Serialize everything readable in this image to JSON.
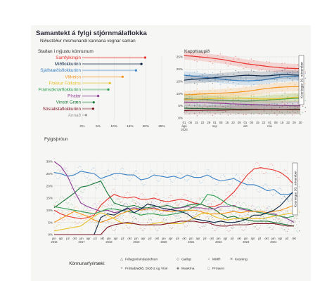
{
  "header": {
    "title": "Samantekt á fylgi stjórnmálaflokka",
    "subtitle": "Niðustöður mismunandi kannana vegnar saman"
  },
  "chart_data": [
    {
      "type": "scatter",
      "title": "Staðan í nýjustu könnunum",
      "xlabel": "",
      "ylabel": "",
      "xlim": [
        0,
        25
      ],
      "x_ticks": [
        "0%",
        "5%",
        "10%",
        "15%",
        "20%",
        "25%"
      ],
      "grid": true,
      "categories": [
        "Samfylkingin",
        "Miðflokkurinn",
        "Sjálfstæðisflokkurinn",
        "Viðreisn",
        "Flokkur Fólksins",
        "Framsóknarflokkurinn",
        "Píratar",
        "Vinstri Græn",
        "Sósíalistaflokkurinn",
        "Annað"
      ],
      "values": [
        19.8,
        18.6,
        16.9,
        12.7,
        8.7,
        8.2,
        5.0,
        3.6,
        3.4,
        1.2
      ],
      "colors": [
        "#e8302c",
        "#0b2646",
        "#3b82c4",
        "#f6941d",
        "#e8c22a",
        "#2e9e4f",
        "#8e3b95",
        "#1a7a3a",
        "#7a1020",
        "#9a9a9a"
      ]
    },
    {
      "type": "line",
      "title": "Kapphlaupið",
      "xlabel": "",
      "ylabel": "",
      "ylim": [
        0,
        25
      ],
      "y_ticks": [
        "0%",
        "5%",
        "10%",
        "15%",
        "20%",
        "25%"
      ],
      "x_ticks": [
        "01 ágú 2024",
        "08",
        "15",
        "22",
        "29",
        "01 sep",
        "08",
        "15",
        "22",
        "29",
        "01 okt",
        "08",
        "15",
        "22",
        "01 nóv",
        "08",
        "15",
        "22",
        "29",
        "30"
      ],
      "annotation": "Kosningar 30. nóvember",
      "grid": true,
      "series": [
        {
          "name": "Samfylkingin",
          "color": "#e8302c",
          "values": [
            25.5,
            25.3,
            25.0,
            24.7,
            24.3,
            23.9,
            23.3,
            22.8,
            22.2,
            21.8,
            21.4,
            21.0,
            20.7,
            20.4,
            20.3,
            20.2
          ]
        },
        {
          "name": "Sjálfstæðisflokkurinn",
          "color": "#3b82c4",
          "values": [
            17.5,
            17.2,
            16.8,
            16.5,
            16.2,
            15.8,
            15.5,
            15.3,
            15.2,
            15.3,
            15.5,
            16.0,
            16.5,
            16.9,
            17.0,
            17.0
          ]
        },
        {
          "name": "Miðflokkurinn",
          "color": "#0b2646",
          "values": [
            15.5,
            15.8,
            16.0,
            16.2,
            16.5,
            16.8,
            17.0,
            17.3,
            17.5,
            17.4,
            17.2,
            17.3,
            17.6,
            17.8,
            17.6,
            17.5
          ]
        },
        {
          "name": "Viðreisn",
          "color": "#f6941d",
          "values": [
            9.5,
            9.6,
            9.8,
            9.9,
            10.0,
            10.2,
            10.4,
            10.6,
            10.9,
            11.3,
            11.8,
            12.2,
            12.5,
            12.7,
            12.8,
            12.8
          ]
        },
        {
          "name": "Framsóknarflokkurinn",
          "color": "#2e9e4f",
          "values": [
            7.8,
            7.7,
            7.6,
            7.5,
            7.3,
            7.1,
            7.0,
            7.0,
            6.9,
            7.0,
            7.2,
            7.4,
            7.6,
            7.8,
            8.0,
            8.1
          ]
        },
        {
          "name": "Flokkur Fólksins",
          "color": "#e8c22a",
          "values": [
            7.5,
            7.6,
            7.8,
            7.9,
            8.0,
            8.0,
            8.1,
            8.1,
            8.0,
            7.9,
            7.8,
            7.8,
            7.9,
            8.1,
            8.4,
            8.6
          ]
        },
        {
          "name": "Píratar",
          "color": "#8e3b95",
          "values": [
            6.5,
            6.4,
            6.3,
            6.2,
            6.1,
            6.0,
            5.8,
            5.7,
            5.6,
            5.5,
            5.4,
            5.3,
            5.2,
            5.1,
            5.0,
            5.0
          ]
        },
        {
          "name": "Vinstri Græn",
          "color": "#1a7a3a",
          "values": [
            4.0,
            3.9,
            3.9,
            3.8,
            3.8,
            3.7,
            3.7,
            3.6,
            3.6,
            3.6,
            3.5,
            3.5,
            3.5,
            3.5,
            3.6,
            3.6
          ]
        },
        {
          "name": "Sósíalistaflokkurinn",
          "color": "#7a1020",
          "values": [
            3.0,
            3.1,
            3.1,
            3.2,
            3.2,
            3.2,
            3.3,
            3.3,
            3.3,
            3.4,
            3.4,
            3.4,
            3.4,
            3.4,
            3.4,
            3.4
          ]
        }
      ]
    },
    {
      "type": "line",
      "title": "Fylgisþróun",
      "xlabel": "",
      "ylabel": "",
      "ylim": [
        0,
        30
      ],
      "y_ticks": [
        "0%",
        "5%",
        "10%",
        "15%",
        "20%",
        "25%",
        "30%"
      ],
      "x_ticks": [
        "jan 2016",
        "apr",
        "júl",
        "okt",
        "jan 2017",
        "apr",
        "júl",
        "okt",
        "jan 2018",
        "apr",
        "júl",
        "okt",
        "jan 2019",
        "apr",
        "júl",
        "okt",
        "jan 2020",
        "apr",
        "júl",
        "okt",
        "jan 2021",
        "apr",
        "júl",
        "okt",
        "jan 2022",
        "apr",
        "júl",
        "okt",
        "jan 2023",
        "apr",
        "júl",
        "okt",
        "jan 2024",
        "apr",
        "júl",
        "okt"
      ],
      "annotation": "Kosningar 30. nóvember",
      "grid": true,
      "series": [
        {
          "name": "Sjálfstæðisflokkurinn",
          "color": "#3b82c4",
          "values": [
            25.5,
            25.0,
            24.0,
            24.5,
            26.0,
            25.5,
            25.0,
            23.0,
            24.0,
            25.0,
            25.0,
            24.5,
            24.5,
            22.5,
            23.0,
            24.5,
            24.0,
            23.5,
            24.0,
            23.0,
            24.5,
            23.5,
            23.5,
            24.5,
            23.0,
            22.0,
            22.5,
            23.0,
            21.5,
            20.5,
            20.5,
            19.5,
            18.0,
            18.5,
            16.5,
            16.5,
            17.0
          ]
        },
        {
          "name": "Samfylkingin",
          "color": "#e8302c",
          "values": [
            10.0,
            8.5,
            7.5,
            7.0,
            6.5,
            7.0,
            8.0,
            12.0,
            14.5,
            16.5,
            15.5,
            15.0,
            15.5,
            14.5,
            14.5,
            15.0,
            14.0,
            13.5,
            14.0,
            14.5,
            14.0,
            13.0,
            12.5,
            11.5,
            11.5,
            12.5,
            15.0,
            17.5,
            21.0,
            24.5,
            27.0,
            27.5,
            27.0,
            26.5,
            25.5,
            23.5,
            20.5
          ]
        },
        {
          "name": "Vinstri Græn",
          "color": "#1a7a3a",
          "values": [
            11.0,
            13.0,
            15.0,
            17.0,
            19.5,
            20.0,
            21.0,
            22.0,
            17.0,
            13.0,
            12.0,
            11.5,
            12.0,
            11.0,
            11.0,
            11.5,
            11.5,
            12.0,
            11.0,
            11.0,
            12.0,
            12.5,
            12.5,
            11.5,
            10.5,
            8.5,
            7.0,
            7.5,
            6.5,
            6.0,
            5.5,
            5.5,
            5.5,
            5.0,
            4.5,
            4.0,
            3.5
          ]
        },
        {
          "name": "Píratar",
          "color": "#8e3b95",
          "values": [
            30.0,
            28.0,
            24.0,
            18.0,
            13.0,
            11.5,
            10.5,
            9.5,
            10.0,
            9.0,
            9.5,
            10.5,
            11.0,
            10.5,
            10.5,
            11.0,
            10.0,
            10.0,
            10.5,
            11.0,
            11.5,
            11.0,
            11.0,
            10.5,
            10.5,
            11.5,
            11.5,
            12.0,
            10.5,
            10.0,
            9.5,
            9.0,
            8.5,
            8.5,
            7.5,
            6.5,
            5.0
          ]
        },
        {
          "name": "Framsóknarflokkurinn",
          "color": "#2e9e4f",
          "values": [
            11.5,
            11.0,
            10.5,
            10.0,
            9.5,
            9.0,
            8.5,
            9.5,
            10.5,
            10.5,
            10.0,
            9.5,
            9.0,
            8.0,
            8.5,
            8.5,
            8.0,
            8.0,
            8.5,
            9.0,
            10.0,
            11.5,
            12.5,
            16.5,
            16.0,
            14.5,
            12.5,
            11.5,
            11.0,
            10.5,
            9.5,
            9.0,
            8.5,
            8.0,
            7.5,
            7.0,
            7.5
          ]
        },
        {
          "name": "Viðreisn",
          "color": "#f6941d",
          "values": [
            5.0,
            6.5,
            8.0,
            9.5,
            8.5,
            7.5,
            6.0,
            5.0,
            6.0,
            7.0,
            8.5,
            9.5,
            10.5,
            10.0,
            10.5,
            10.5,
            10.0,
            9.5,
            9.5,
            10.0,
            10.0,
            10.0,
            9.5,
            8.5,
            8.5,
            8.5,
            9.0,
            9.5,
            9.0,
            9.5,
            9.5,
            9.5,
            9.0,
            9.5,
            10.0,
            11.0,
            12.0
          ]
        },
        {
          "name": "Miðflokkurinn",
          "color": "#0b2646",
          "values": [
            0,
            0,
            0,
            0,
            0,
            0,
            0,
            7.0,
            8.5,
            8.0,
            9.5,
            11.0,
            9.0,
            10.5,
            12.5,
            12.0,
            11.0,
            10.5,
            10.0,
            9.5,
            8.5,
            6.5,
            6.0,
            5.5,
            5.0,
            5.5,
            5.0,
            5.0,
            5.5,
            6.5,
            8.0,
            8.0,
            9.0,
            10.0,
            12.0,
            15.0,
            18.0
          ]
        },
        {
          "name": "Flokkur Fólksins",
          "color": "#e8c22a",
          "values": [
            1.5,
            2.0,
            2.5,
            3.0,
            3.5,
            5.5,
            7.5,
            9.0,
            8.0,
            6.5,
            5.0,
            4.5,
            4.5,
            4.0,
            4.0,
            4.5,
            5.0,
            4.5,
            4.5,
            4.5,
            5.5,
            7.0,
            8.5,
            9.0,
            7.5,
            6.5,
            6.0,
            6.5,
            6.5,
            7.0,
            6.5,
            6.5,
            7.0,
            7.5,
            8.0,
            8.5,
            9.0
          ]
        },
        {
          "name": "Sósíalistaflokkurinn",
          "color": "#7a1020",
          "values": [
            0,
            0,
            0,
            0,
            0,
            0,
            0,
            0,
            3.0,
            4.0,
            4.5,
            5.0,
            4.5,
            4.0,
            4.0,
            4.0,
            4.0,
            4.5,
            5.0,
            5.5,
            5.5,
            5.5,
            5.0,
            5.0,
            4.0,
            3.5,
            3.5,
            4.0,
            4.0,
            4.0,
            4.5,
            4.5,
            4.5,
            4.5,
            4.0,
            3.5,
            3.5
          ]
        }
      ],
      "legend_title": "Könnunarfyrirtæki:",
      "legend_entries": [
        {
          "label": "Félagsvísindastofnun",
          "symbol": "△"
        },
        {
          "label": "Gallup",
          "symbol": "◇"
        },
        {
          "label": "MMR",
          "symbol": "○"
        },
        {
          "label": "Kosning",
          "symbol": "✕"
        },
        {
          "label": "Fréttablaðið, Stöð 2 og Vísir",
          "symbol": "+"
        },
        {
          "label": "Maskína",
          "symbol": "◈"
        },
        {
          "label": "Prósent",
          "symbol": "□"
        }
      ]
    }
  ]
}
